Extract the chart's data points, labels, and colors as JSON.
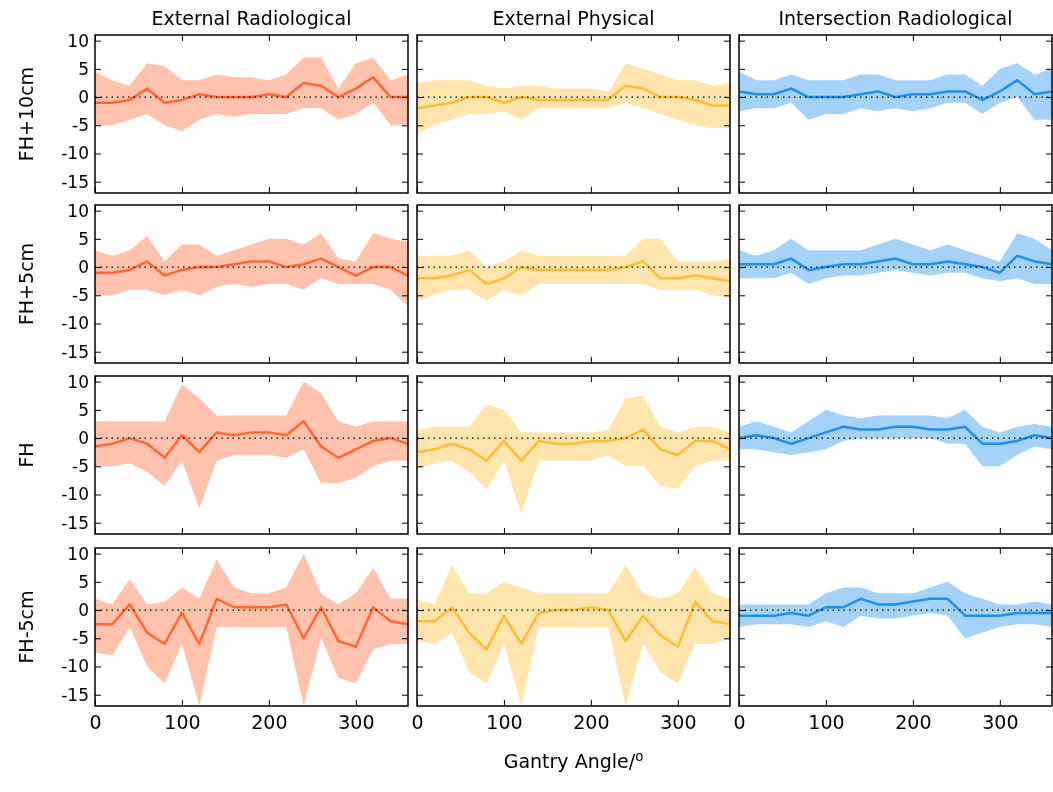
{
  "chart_data": [
    {
      "type": "line",
      "title": "External Radiological",
      "ylabel": "FH+10cm",
      "x": [
        0,
        20,
        40,
        60,
        80,
        100,
        120,
        140,
        160,
        180,
        200,
        220,
        240,
        260,
        280,
        300,
        320,
        340,
        360
      ],
      "xlim": [
        0,
        360
      ],
      "xticks": [
        0,
        100,
        200,
        300
      ],
      "ylim": [
        -17,
        11
      ],
      "yticks": [
        -15,
        -10,
        -5,
        0,
        5,
        10
      ],
      "tick_labels": "y",
      "ref_lines": [
        {
          "axis": "y",
          "value": 0,
          "color": "#000000",
          "line_style": "dotted"
        }
      ],
      "series": [
        {
          "color": "#ff6633",
          "values": [
            -1,
            -1,
            -0.5,
            1.5,
            -1,
            -0.5,
            0.5,
            0,
            0,
            0,
            0.5,
            0,
            2.5,
            2,
            0,
            1.5,
            3.5,
            0,
            0
          ],
          "upper": [
            4.5,
            3,
            2,
            6,
            5.5,
            3,
            3,
            4,
            3.5,
            3.5,
            3,
            4,
            7,
            7,
            1.5,
            6,
            7,
            3,
            4
          ],
          "lower": [
            -5,
            -5,
            -4,
            -3,
            -5,
            -6,
            -4,
            -3,
            -3.5,
            -3,
            -3,
            -3,
            -2,
            -2,
            -4,
            -3,
            -1,
            -5,
            -5
          ]
        }
      ]
    },
    {
      "type": "line",
      "title": "External Physical",
      "x": [
        0,
        20,
        40,
        60,
        80,
        100,
        120,
        140,
        160,
        180,
        200,
        220,
        240,
        260,
        280,
        300,
        320,
        340,
        360
      ],
      "xlim": [
        0,
        360
      ],
      "xticks": [
        0,
        100,
        200,
        300
      ],
      "ylim": [
        -17,
        11
      ],
      "yticks": [
        -15,
        -10,
        -5,
        0,
        5,
        10
      ],
      "tick_labels": false,
      "ref_lines": [
        {
          "axis": "y",
          "value": 0,
          "color": "#000000",
          "line_style": "dotted"
        }
      ],
      "series": [
        {
          "color": "#ffbb33",
          "values": [
            -2,
            -1.5,
            -1,
            0,
            0,
            -1,
            0,
            -0.5,
            -0.5,
            -0.5,
            -0.5,
            -0.5,
            2,
            1.5,
            0,
            0,
            -0.5,
            -1.5,
            -1.5
          ],
          "upper": [
            2.5,
            3,
            3,
            3,
            2,
            1.5,
            2,
            2,
            1.5,
            1.5,
            1.5,
            1,
            6,
            5,
            4,
            3,
            3,
            2,
            2.5
          ],
          "lower": [
            -6.5,
            -5,
            -4,
            -3,
            -3,
            -2.5,
            -4,
            -2,
            -2,
            -2,
            -2,
            -2,
            -1,
            -2,
            -3,
            -4,
            -5,
            -5.5,
            -5.5
          ]
        }
      ]
    },
    {
      "type": "line",
      "title": "Intersection Radiological",
      "x": [
        0,
        20,
        40,
        60,
        80,
        100,
        120,
        140,
        160,
        180,
        200,
        220,
        240,
        260,
        280,
        300,
        320,
        340,
        360
      ],
      "xlim": [
        0,
        360
      ],
      "xticks": [
        0,
        100,
        200,
        300
      ],
      "ylim": [
        -17,
        11
      ],
      "yticks": [
        -15,
        -10,
        -5,
        0,
        5,
        10
      ],
      "tick_labels": false,
      "ref_lines": [
        {
          "axis": "y",
          "value": 0,
          "color": "#000000",
          "line_style": "dotted"
        }
      ],
      "series": [
        {
          "color": "#1e8ff0",
          "values": [
            1,
            0.5,
            0.5,
            1.5,
            0,
            0,
            0,
            0.5,
            1,
            0,
            0.5,
            0.5,
            1,
            1,
            -0.5,
            1,
            3,
            0.5,
            1
          ],
          "upper": [
            4.5,
            3,
            3,
            4,
            3,
            3,
            3,
            4,
            4,
            3,
            3,
            3,
            4,
            4,
            2,
            5,
            6,
            4,
            5
          ],
          "lower": [
            -2.5,
            -2,
            -2,
            -1,
            -4,
            -3,
            -3,
            -2,
            -2.5,
            -2,
            -2.5,
            -2,
            -1,
            -1,
            -3,
            -1,
            0,
            -4,
            -4
          ]
        }
      ]
    },
    {
      "type": "line",
      "ylabel": "FH+5cm",
      "x": [
        0,
        20,
        40,
        60,
        80,
        100,
        120,
        140,
        160,
        180,
        200,
        220,
        240,
        260,
        280,
        300,
        320,
        340,
        360
      ],
      "xlim": [
        0,
        360
      ],
      "xticks": [
        0,
        100,
        200,
        300
      ],
      "ylim": [
        -17,
        11
      ],
      "yticks": [
        -15,
        -10,
        -5,
        0,
        5,
        10
      ],
      "tick_labels": "y",
      "ref_lines": [
        {
          "axis": "y",
          "value": 0,
          "color": "#000000",
          "line_style": "dotted"
        }
      ],
      "series": [
        {
          "color": "#ff6633",
          "values": [
            -1,
            -1,
            -0.5,
            1,
            -1.5,
            -0.5,
            0,
            0,
            0.5,
            1,
            1,
            0,
            0.5,
            1.5,
            0,
            -1.5,
            0,
            0,
            -1.5
          ],
          "upper": [
            3,
            2,
            3,
            5.5,
            1,
            4,
            4,
            2,
            3,
            4,
            5,
            5,
            4,
            6,
            1.5,
            1,
            6,
            5,
            4.5
          ],
          "lower": [
            -5,
            -5,
            -4,
            -4,
            -5,
            -4,
            -5,
            -3.5,
            -3,
            -3.5,
            -3,
            -3,
            -4,
            -2,
            -3,
            -3,
            -3,
            -4,
            -7
          ]
        }
      ]
    },
    {
      "type": "line",
      "x": [
        0,
        20,
        40,
        60,
        80,
        100,
        120,
        140,
        160,
        180,
        200,
        220,
        240,
        260,
        280,
        300,
        320,
        340,
        360
      ],
      "xlim": [
        0,
        360
      ],
      "xticks": [
        0,
        100,
        200,
        300
      ],
      "ylim": [
        -17,
        11
      ],
      "yticks": [
        -15,
        -10,
        -5,
        0,
        5,
        10
      ],
      "tick_labels": false,
      "ref_lines": [
        {
          "axis": "y",
          "value": 0,
          "color": "#000000",
          "line_style": "dotted"
        }
      ],
      "series": [
        {
          "color": "#ffbb33",
          "values": [
            -2,
            -2,
            -1.5,
            -0.5,
            -3,
            -2,
            0,
            -0.5,
            -0.5,
            -0.5,
            -0.5,
            -0.5,
            0,
            1,
            -2,
            -2,
            -1.5,
            -2,
            -2.5
          ],
          "upper": [
            2,
            2,
            2,
            3,
            0,
            1,
            3,
            2,
            2,
            2,
            2,
            2,
            2,
            5,
            5,
            1,
            1,
            1,
            1.5
          ],
          "lower": [
            -6,
            -5,
            -4,
            -4,
            -6,
            -4,
            -5,
            -3,
            -3,
            -3,
            -3,
            -3,
            -3,
            -3,
            -4,
            -4,
            -4,
            -5,
            -5.5
          ]
        }
      ]
    },
    {
      "type": "line",
      "x": [
        0,
        20,
        40,
        60,
        80,
        100,
        120,
        140,
        160,
        180,
        200,
        220,
        240,
        260,
        280,
        300,
        320,
        340,
        360
      ],
      "xlim": [
        0,
        360
      ],
      "xticks": [
        0,
        100,
        200,
        300
      ],
      "ylim": [
        -17,
        11
      ],
      "yticks": [
        -15,
        -10,
        -5,
        0,
        5,
        10
      ],
      "tick_labels": false,
      "ref_lines": [
        {
          "axis": "y",
          "value": 0,
          "color": "#000000",
          "line_style": "dotted"
        }
      ],
      "series": [
        {
          "color": "#1e8ff0",
          "values": [
            0.5,
            0.5,
            0.5,
            1.5,
            -0.5,
            0,
            0.5,
            0.5,
            1,
            1.5,
            0.5,
            0.5,
            1,
            0.5,
            0,
            -1,
            2,
            1,
            0.5
          ],
          "upper": [
            3,
            2,
            3,
            5,
            3,
            3,
            3,
            3,
            4,
            5,
            4,
            3,
            4,
            3,
            2,
            1,
            6,
            5,
            3
          ],
          "lower": [
            -2,
            -2,
            -2,
            -1,
            -3,
            -2,
            -1.5,
            -1.5,
            -1,
            -0.5,
            -1,
            -1.5,
            -1,
            -1,
            -2,
            -2.5,
            -2,
            -3,
            -3
          ]
        }
      ]
    },
    {
      "type": "line",
      "ylabel": "FH",
      "x": [
        0,
        20,
        40,
        60,
        80,
        100,
        120,
        140,
        160,
        180,
        200,
        220,
        240,
        260,
        280,
        300,
        320,
        340,
        360
      ],
      "xlim": [
        0,
        360
      ],
      "xticks": [
        0,
        100,
        200,
        300
      ],
      "ylim": [
        -17,
        11
      ],
      "yticks": [
        -15,
        -10,
        -5,
        0,
        5,
        10
      ],
      "tick_labels": "y",
      "ref_lines": [
        {
          "axis": "y",
          "value": 0,
          "color": "#000000",
          "line_style": "dotted"
        }
      ],
      "series": [
        {
          "color": "#ff6633",
          "values": [
            -1.5,
            -1,
            0,
            -1,
            -3.5,
            0.5,
            -2.5,
            1,
            0.5,
            1,
            1,
            0.5,
            3,
            -1.5,
            -3.5,
            -2,
            -0.5,
            0,
            -1
          ],
          "upper": [
            3,
            3,
            3,
            3,
            3,
            9.5,
            7,
            4,
            4,
            4,
            4,
            4,
            10,
            8,
            3,
            2,
            3,
            3,
            3
          ],
          "lower": [
            -5,
            -5,
            -4.5,
            -6,
            -8.5,
            -4,
            -12.5,
            -4,
            -3,
            -3,
            -3,
            -3.5,
            -2,
            -8,
            -8,
            -7,
            -5,
            -4,
            -4
          ]
        }
      ]
    },
    {
      "type": "line",
      "x": [
        0,
        20,
        40,
        60,
        80,
        100,
        120,
        140,
        160,
        180,
        200,
        220,
        240,
        260,
        280,
        300,
        320,
        340,
        360
      ],
      "xlim": [
        0,
        360
      ],
      "xticks": [
        0,
        100,
        200,
        300
      ],
      "ylim": [
        -17,
        11
      ],
      "yticks": [
        -15,
        -10,
        -5,
        0,
        5,
        10
      ],
      "tick_labels": false,
      "ref_lines": [
        {
          "axis": "y",
          "value": 0,
          "color": "#000000",
          "line_style": "dotted"
        }
      ],
      "series": [
        {
          "color": "#ffbb33",
          "values": [
            -2.5,
            -2,
            -1,
            -2,
            -4,
            -0.5,
            -4,
            -0.5,
            -1,
            -1,
            -0.5,
            -0.5,
            0,
            1.5,
            -2,
            -3,
            -0.5,
            -0.5,
            -2
          ],
          "upper": [
            1.5,
            2,
            2,
            2,
            6,
            5,
            1,
            1,
            1,
            1,
            1,
            1.5,
            7,
            7.5,
            2,
            1,
            2,
            2,
            1
          ],
          "lower": [
            -5.5,
            -4.5,
            -4,
            -6,
            -9,
            -4,
            -13.5,
            -4,
            -4,
            -4,
            -4,
            -3,
            -5,
            -5,
            -8.5,
            -9,
            -5,
            -4,
            -4
          ]
        }
      ]
    },
    {
      "type": "line",
      "x": [
        0,
        20,
        40,
        60,
        80,
        100,
        120,
        140,
        160,
        180,
        200,
        220,
        240,
        260,
        280,
        300,
        320,
        340,
        360
      ],
      "xlim": [
        0,
        360
      ],
      "xticks": [
        0,
        100,
        200,
        300
      ],
      "ylim": [
        -17,
        11
      ],
      "yticks": [
        -15,
        -10,
        -5,
        0,
        5,
        10
      ],
      "tick_labels": false,
      "ref_lines": [
        {
          "axis": "y",
          "value": 0,
          "color": "#000000",
          "line_style": "dotted"
        }
      ],
      "series": [
        {
          "color": "#1e8ff0",
          "values": [
            0,
            0.5,
            0,
            -1,
            0,
            1,
            2,
            1.5,
            1.5,
            2,
            2,
            1.5,
            1.5,
            2,
            -1,
            -1,
            -0.5,
            0.5,
            0
          ],
          "upper": [
            2,
            3,
            2,
            1,
            3,
            5,
            4,
            3.5,
            4,
            4,
            4,
            4,
            3.5,
            5,
            2,
            1,
            2,
            2.5,
            2
          ],
          "lower": [
            -2,
            -2,
            -2.5,
            -3,
            -2.5,
            -2,
            -0.5,
            0,
            0,
            0,
            0,
            0,
            -1,
            -1,
            -5,
            -5,
            -3,
            -1.5,
            -2
          ]
        }
      ]
    },
    {
      "type": "line",
      "ylabel": "FH-5cm",
      "x": [
        0,
        20,
        40,
        60,
        80,
        100,
        120,
        140,
        160,
        180,
        200,
        220,
        240,
        260,
        280,
        300,
        320,
        340,
        360
      ],
      "xlim": [
        0,
        360
      ],
      "xticks": [
        0,
        100,
        200,
        300
      ],
      "ylim": [
        -17,
        11
      ],
      "yticks": [
        -15,
        -10,
        -5,
        0,
        5,
        10
      ],
      "ref_lines": [
        {
          "axis": "y",
          "value": 0,
          "color": "#000000",
          "line_style": "dotted"
        }
      ],
      "series": [
        {
          "color": "#ff6633",
          "values": [
            -2.5,
            -2.5,
            1,
            -4,
            -6,
            -0.5,
            -6,
            2,
            0.5,
            0.5,
            0.5,
            1,
            -5,
            0.5,
            -5.5,
            -6.5,
            0.5,
            -2,
            -2.5
          ],
          "upper": [
            2,
            1,
            5.5,
            1,
            1.5,
            4,
            2,
            9,
            4,
            3,
            3,
            4,
            10,
            3,
            1,
            3,
            7.5,
            2,
            2
          ],
          "lower": [
            -7.5,
            -8,
            -3,
            -10,
            -13,
            -6,
            -17,
            -3,
            -3,
            -3,
            -3,
            -3,
            -17,
            -5,
            -12,
            -13,
            -7,
            -6,
            -6
          ]
        }
      ]
    },
    {
      "type": "line",
      "xlabel": "Gantry Angle/$^{o}$",
      "x": [
        0,
        20,
        40,
        60,
        80,
        100,
        120,
        140,
        160,
        180,
        200,
        220,
        240,
        260,
        280,
        300,
        320,
        340,
        360
      ],
      "xlim": [
        0,
        360
      ],
      "xticks": [
        0,
        100,
        200,
        300
      ],
      "ylim": [
        -17,
        11
      ],
      "yticks": [
        -15,
        -10,
        -5,
        0,
        5,
        10
      ],
      "tick_labels": "x",
      "ref_lines": [
        {
          "axis": "y",
          "value": 0,
          "color": "#000000",
          "line_style": "dotted"
        }
      ],
      "series": [
        {
          "color": "#ffbb33",
          "values": [
            -2,
            -2,
            0.5,
            -4,
            -7,
            -1,
            -6,
            -0.5,
            0,
            0,
            0.5,
            0,
            -5.5,
            -1,
            -4.5,
            -6.5,
            1.5,
            -2,
            -2.5
          ],
          "upper": [
            2,
            1,
            8,
            3,
            3,
            5,
            4,
            3,
            3,
            3,
            3,
            3,
            8,
            3,
            2,
            3,
            7.5,
            3,
            2
          ],
          "lower": [
            -5.5,
            -6,
            -4,
            -11,
            -13,
            -6,
            -17,
            -3,
            -3,
            -3,
            -3,
            -3,
            -17,
            -6,
            -11,
            -13,
            -6,
            -6,
            -5
          ]
        }
      ]
    },
    {
      "type": "line",
      "x": [
        0,
        20,
        40,
        60,
        80,
        100,
        120,
        140,
        160,
        180,
        200,
        220,
        240,
        260,
        280,
        300,
        320,
        340,
        360
      ],
      "xlim": [
        0,
        360
      ],
      "xticks": [
        0,
        100,
        200,
        300
      ],
      "ylim": [
        -17,
        11
      ],
      "yticks": [
        -15,
        -10,
        -5,
        0,
        5,
        10
      ],
      "tick_labels": "x",
      "ref_lines": [
        {
          "axis": "y",
          "value": 0,
          "color": "#000000",
          "line_style": "dotted"
        }
      ],
      "series": [
        {
          "color": "#1e8ff0",
          "values": [
            -1,
            -1,
            -1,
            -0.5,
            -1,
            0.5,
            0.5,
            2,
            1,
            1,
            1.5,
            2,
            2,
            -1,
            -1,
            -1,
            -0.5,
            -0.5,
            -0.5
          ],
          "upper": [
            1,
            1,
            1,
            1,
            1,
            3,
            4,
            4,
            3,
            3,
            3,
            4,
            5,
            3,
            2,
            1,
            1,
            1.5,
            1
          ],
          "lower": [
            -3,
            -2.5,
            -2.5,
            -2.5,
            -3,
            -2,
            -3,
            -1,
            -1.5,
            -1.5,
            -1,
            -0.5,
            -1,
            -5,
            -4,
            -3,
            -2.5,
            -2.5,
            -3
          ]
        }
      ]
    }
  ]
}
